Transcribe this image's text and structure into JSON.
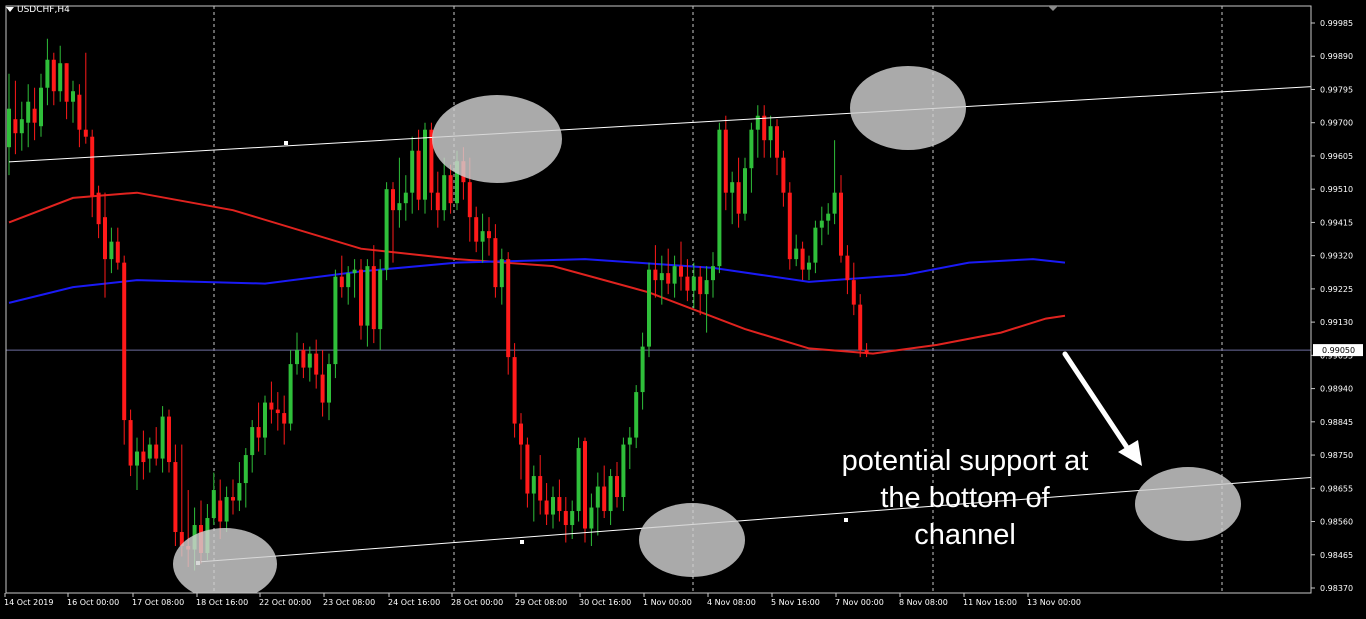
{
  "window": {
    "symbol": "USDCHF,H4"
  },
  "chart_data": {
    "type": "candlestick",
    "symbol": "USDCHF",
    "timeframe": "H4",
    "y_range": [
      0.9837,
      0.99985
    ],
    "y_ticks": [
      "0.99985",
      "0.99890",
      "0.99795",
      "0.99700",
      "0.99605",
      "0.99510",
      "0.99415",
      "0.99320",
      "0.99225",
      "0.99130",
      "0.99035",
      "0.98940",
      "0.98845",
      "0.98750",
      "0.98655",
      "0.98560",
      "0.98465",
      "0.98370"
    ],
    "x_ticks": [
      "14 Oct 2019",
      "16 Oct 00:00",
      "17 Oct 08:00",
      "18 Oct 16:00",
      "22 Oct 00:00",
      "23 Oct 08:00",
      "24 Oct 16:00",
      "28 Oct 00:00",
      "29 Oct 08:00",
      "30 Oct 16:00",
      "1 Nov 00:00",
      "4 Nov 08:00",
      "5 Nov 16:00",
      "7 Nov 00:00",
      "8 Nov 08:00",
      "11 Nov 16:00",
      "13 Nov 00:00"
    ],
    "current_price": "0.99050",
    "bull_color": "#2fbf3a",
    "bear_color": "#ff1a1a",
    "candles": [
      {
        "o": 0.9963,
        "h": 0.9984,
        "l": 0.9955,
        "c": 0.9974
      },
      {
        "o": 0.9971,
        "h": 0.9982,
        "l": 0.9961,
        "c": 0.9967
      },
      {
        "o": 0.9967,
        "h": 0.9976,
        "l": 0.9962,
        "c": 0.9971
      },
      {
        "o": 0.997,
        "h": 0.9981,
        "l": 0.9963,
        "c": 0.9976
      },
      {
        "o": 0.9974,
        "h": 0.998,
        "l": 0.9965,
        "c": 0.997
      },
      {
        "o": 0.9969,
        "h": 0.9984,
        "l": 0.9966,
        "c": 0.998
      },
      {
        "o": 0.998,
        "h": 0.9994,
        "l": 0.9975,
        "c": 0.9988
      },
      {
        "o": 0.9988,
        "h": 0.999,
        "l": 0.9975,
        "c": 0.9979
      },
      {
        "o": 0.9979,
        "h": 0.9992,
        "l": 0.9976,
        "c": 0.9987
      },
      {
        "o": 0.9987,
        "h": 0.9987,
        "l": 0.9971,
        "c": 0.9976
      },
      {
        "o": 0.9976,
        "h": 0.9982,
        "l": 0.997,
        "c": 0.9979
      },
      {
        "o": 0.9978,
        "h": 0.9981,
        "l": 0.9963,
        "c": 0.9968
      },
      {
        "o": 0.9968,
        "h": 0.999,
        "l": 0.9964,
        "c": 0.9966
      },
      {
        "o": 0.9966,
        "h": 0.9968,
        "l": 0.9943,
        "c": 0.9949
      },
      {
        "o": 0.995,
        "h": 0.9952,
        "l": 0.9937,
        "c": 0.9941
      },
      {
        "o": 0.9943,
        "h": 0.995,
        "l": 0.992,
        "c": 0.9931
      },
      {
        "o": 0.9931,
        "h": 0.994,
        "l": 0.9927,
        "c": 0.9936
      },
      {
        "o": 0.9936,
        "h": 0.994,
        "l": 0.9928,
        "c": 0.993
      },
      {
        "o": 0.993,
        "h": 0.9932,
        "l": 0.9878,
        "c": 0.9885
      },
      {
        "o": 0.9885,
        "h": 0.9888,
        "l": 0.9869,
        "c": 0.9872
      },
      {
        "o": 0.9872,
        "h": 0.988,
        "l": 0.9865,
        "c": 0.9876
      },
      {
        "o": 0.9876,
        "h": 0.9882,
        "l": 0.9868,
        "c": 0.9873
      },
      {
        "o": 0.9874,
        "h": 0.988,
        "l": 0.987,
        "c": 0.9878
      },
      {
        "o": 0.9878,
        "h": 0.9883,
        "l": 0.9872,
        "c": 0.9874
      },
      {
        "o": 0.9874,
        "h": 0.9889,
        "l": 0.987,
        "c": 0.9886
      },
      {
        "o": 0.9886,
        "h": 0.9888,
        "l": 0.987,
        "c": 0.9873
      },
      {
        "o": 0.9873,
        "h": 0.9878,
        "l": 0.9849,
        "c": 0.9853
      },
      {
        "o": 0.9853,
        "h": 0.9878,
        "l": 0.9846,
        "c": 0.9849
      },
      {
        "o": 0.9849,
        "h": 0.9865,
        "l": 0.9843,
        "c": 0.9848
      },
      {
        "o": 0.9848,
        "h": 0.986,
        "l": 0.9842,
        "c": 0.9855
      },
      {
        "o": 0.9855,
        "h": 0.9862,
        "l": 0.9844,
        "c": 0.9847
      },
      {
        "o": 0.9847,
        "h": 0.9861,
        "l": 0.9845,
        "c": 0.9857
      },
      {
        "o": 0.9857,
        "h": 0.987,
        "l": 0.9855,
        "c": 0.9865
      },
      {
        "o": 0.9862,
        "h": 0.9868,
        "l": 0.9851,
        "c": 0.9856
      },
      {
        "o": 0.9856,
        "h": 0.9866,
        "l": 0.9853,
        "c": 0.9863
      },
      {
        "o": 0.9863,
        "h": 0.9868,
        "l": 0.9858,
        "c": 0.9862
      },
      {
        "o": 0.9862,
        "h": 0.9873,
        "l": 0.9859,
        "c": 0.9867
      },
      {
        "o": 0.9867,
        "h": 0.9877,
        "l": 0.986,
        "c": 0.9875
      },
      {
        "o": 0.9875,
        "h": 0.9885,
        "l": 0.987,
        "c": 0.9883
      },
      {
        "o": 0.9883,
        "h": 0.989,
        "l": 0.9876,
        "c": 0.988
      },
      {
        "o": 0.988,
        "h": 0.9892,
        "l": 0.9875,
        "c": 0.989
      },
      {
        "o": 0.989,
        "h": 0.9896,
        "l": 0.9884,
        "c": 0.9888
      },
      {
        "o": 0.9888,
        "h": 0.9893,
        "l": 0.9882,
        "c": 0.9887
      },
      {
        "o": 0.9887,
        "h": 0.9892,
        "l": 0.9878,
        "c": 0.9884
      },
      {
        "o": 0.9884,
        "h": 0.9905,
        "l": 0.9882,
        "c": 0.9901
      },
      {
        "o": 0.9901,
        "h": 0.991,
        "l": 0.9898,
        "c": 0.9905
      },
      {
        "o": 0.9905,
        "h": 0.9907,
        "l": 0.9897,
        "c": 0.99
      },
      {
        "o": 0.99,
        "h": 0.9906,
        "l": 0.9896,
        "c": 0.9904
      },
      {
        "o": 0.9904,
        "h": 0.9908,
        "l": 0.9894,
        "c": 0.9898
      },
      {
        "o": 0.9898,
        "h": 0.9905,
        "l": 0.9886,
        "c": 0.989
      },
      {
        "o": 0.989,
        "h": 0.9904,
        "l": 0.9885,
        "c": 0.9901
      },
      {
        "o": 0.9901,
        "h": 0.9928,
        "l": 0.9897,
        "c": 0.9926
      },
      {
        "o": 0.9926,
        "h": 0.9932,
        "l": 0.992,
        "c": 0.9923
      },
      {
        "o": 0.9923,
        "h": 0.9929,
        "l": 0.9918,
        "c": 0.9927
      },
      {
        "o": 0.9927,
        "h": 0.9931,
        "l": 0.992,
        "c": 0.9928
      },
      {
        "o": 0.9928,
        "h": 0.9931,
        "l": 0.9908,
        "c": 0.9912
      },
      {
        "o": 0.9912,
        "h": 0.9931,
        "l": 0.9906,
        "c": 0.9929
      },
      {
        "o": 0.9929,
        "h": 0.9935,
        "l": 0.9907,
        "c": 0.9911
      },
      {
        "o": 0.9911,
        "h": 0.9931,
        "l": 0.9905,
        "c": 0.9928
      },
      {
        "o": 0.9928,
        "h": 0.9953,
        "l": 0.9925,
        "c": 0.9951
      },
      {
        "o": 0.9951,
        "h": 0.9953,
        "l": 0.993,
        "c": 0.9945
      },
      {
        "o": 0.9945,
        "h": 0.996,
        "l": 0.994,
        "c": 0.9947
      },
      {
        "o": 0.9947,
        "h": 0.9955,
        "l": 0.9942,
        "c": 0.995
      },
      {
        "o": 0.995,
        "h": 0.9966,
        "l": 0.9944,
        "c": 0.9962
      },
      {
        "o": 0.9962,
        "h": 0.9968,
        "l": 0.9945,
        "c": 0.9948
      },
      {
        "o": 0.9948,
        "h": 0.997,
        "l": 0.9944,
        "c": 0.9968
      },
      {
        "o": 0.9968,
        "h": 0.997,
        "l": 0.9945,
        "c": 0.995
      },
      {
        "o": 0.995,
        "h": 0.9956,
        "l": 0.994,
        "c": 0.9945
      },
      {
        "o": 0.9945,
        "h": 0.996,
        "l": 0.9942,
        "c": 0.9955
      },
      {
        "o": 0.9955,
        "h": 0.9958,
        "l": 0.9944,
        "c": 0.9947
      },
      {
        "o": 0.9947,
        "h": 0.9962,
        "l": 0.9945,
        "c": 0.9959
      },
      {
        "o": 0.9959,
        "h": 0.9963,
        "l": 0.9948,
        "c": 0.9953
      },
      {
        "o": 0.9953,
        "h": 0.996,
        "l": 0.9936,
        "c": 0.9943
      },
      {
        "o": 0.9943,
        "h": 0.9946,
        "l": 0.9933,
        "c": 0.9936
      },
      {
        "o": 0.9936,
        "h": 0.9944,
        "l": 0.993,
        "c": 0.9939
      },
      {
        "o": 0.9939,
        "h": 0.9943,
        "l": 0.9932,
        "c": 0.9937
      },
      {
        "o": 0.9937,
        "h": 0.9941,
        "l": 0.992,
        "c": 0.9923
      },
      {
        "o": 0.9923,
        "h": 0.9934,
        "l": 0.9918,
        "c": 0.9931
      },
      {
        "o": 0.9931,
        "h": 0.9933,
        "l": 0.9898,
        "c": 0.9903
      },
      {
        "o": 0.9903,
        "h": 0.9907,
        "l": 0.988,
        "c": 0.9884
      },
      {
        "o": 0.9884,
        "h": 0.9887,
        "l": 0.9868,
        "c": 0.9878
      },
      {
        "o": 0.9878,
        "h": 0.988,
        "l": 0.986,
        "c": 0.9864
      },
      {
        "o": 0.9864,
        "h": 0.9872,
        "l": 0.9856,
        "c": 0.9869
      },
      {
        "o": 0.9869,
        "h": 0.9875,
        "l": 0.9858,
        "c": 0.9862
      },
      {
        "o": 0.9862,
        "h": 0.9867,
        "l": 0.9855,
        "c": 0.9858
      },
      {
        "o": 0.9858,
        "h": 0.9866,
        "l": 0.9854,
        "c": 0.9863
      },
      {
        "o": 0.9863,
        "h": 0.9868,
        "l": 0.9856,
        "c": 0.9859
      },
      {
        "o": 0.9859,
        "h": 0.9863,
        "l": 0.985,
        "c": 0.9855
      },
      {
        "o": 0.9855,
        "h": 0.9862,
        "l": 0.9851,
        "c": 0.9859
      },
      {
        "o": 0.9859,
        "h": 0.988,
        "l": 0.9856,
        "c": 0.9877
      },
      {
        "o": 0.9879,
        "h": 0.988,
        "l": 0.985,
        "c": 0.9854
      },
      {
        "o": 0.9854,
        "h": 0.9864,
        "l": 0.9849,
        "c": 0.986
      },
      {
        "o": 0.986,
        "h": 0.987,
        "l": 0.9852,
        "c": 0.9866
      },
      {
        "o": 0.9866,
        "h": 0.9872,
        "l": 0.9857,
        "c": 0.9859
      },
      {
        "o": 0.9859,
        "h": 0.9871,
        "l": 0.9855,
        "c": 0.9869
      },
      {
        "o": 0.9869,
        "h": 0.9873,
        "l": 0.986,
        "c": 0.9863
      },
      {
        "o": 0.9863,
        "h": 0.988,
        "l": 0.9859,
        "c": 0.9878
      },
      {
        "o": 0.9878,
        "h": 0.9883,
        "l": 0.9871,
        "c": 0.988
      },
      {
        "o": 0.988,
        "h": 0.9895,
        "l": 0.9877,
        "c": 0.9893
      },
      {
        "o": 0.9893,
        "h": 0.991,
        "l": 0.9888,
        "c": 0.9906
      },
      {
        "o": 0.9906,
        "h": 0.993,
        "l": 0.9903,
        "c": 0.9928
      },
      {
        "o": 0.9928,
        "h": 0.9935,
        "l": 0.992,
        "c": 0.9925
      },
      {
        "o": 0.9925,
        "h": 0.9932,
        "l": 0.9918,
        "c": 0.9927
      },
      {
        "o": 0.9927,
        "h": 0.9934,
        "l": 0.9921,
        "c": 0.9924
      },
      {
        "o": 0.9924,
        "h": 0.9932,
        "l": 0.992,
        "c": 0.9929
      },
      {
        "o": 0.9929,
        "h": 0.9936,
        "l": 0.9922,
        "c": 0.9926
      },
      {
        "o": 0.9926,
        "h": 0.9931,
        "l": 0.9919,
        "c": 0.9922
      },
      {
        "o": 0.9922,
        "h": 0.993,
        "l": 0.9917,
        "c": 0.9926
      },
      {
        "o": 0.9926,
        "h": 0.9929,
        "l": 0.9915,
        "c": 0.9921
      },
      {
        "o": 0.9921,
        "h": 0.9929,
        "l": 0.991,
        "c": 0.9925
      },
      {
        "o": 0.9925,
        "h": 0.9933,
        "l": 0.992,
        "c": 0.9929
      },
      {
        "o": 0.9929,
        "h": 0.997,
        "l": 0.9927,
        "c": 0.9968
      },
      {
        "o": 0.9968,
        "h": 0.9972,
        "l": 0.9945,
        "c": 0.995
      },
      {
        "o": 0.995,
        "h": 0.9956,
        "l": 0.9941,
        "c": 0.9953
      },
      {
        "o": 0.9953,
        "h": 0.996,
        "l": 0.994,
        "c": 0.9944
      },
      {
        "o": 0.9944,
        "h": 0.996,
        "l": 0.9942,
        "c": 0.9957
      },
      {
        "o": 0.9957,
        "h": 0.997,
        "l": 0.995,
        "c": 0.9968
      },
      {
        "o": 0.9968,
        "h": 0.9975,
        "l": 0.996,
        "c": 0.9972
      },
      {
        "o": 0.9972,
        "h": 0.9975,
        "l": 0.996,
        "c": 0.9965
      },
      {
        "o": 0.9965,
        "h": 0.9972,
        "l": 0.996,
        "c": 0.9969
      },
      {
        "o": 0.9969,
        "h": 0.9971,
        "l": 0.9955,
        "c": 0.996
      },
      {
        "o": 0.996,
        "h": 0.9962,
        "l": 0.9946,
        "c": 0.995
      },
      {
        "o": 0.995,
        "h": 0.9953,
        "l": 0.9928,
        "c": 0.9931
      },
      {
        "o": 0.9931,
        "h": 0.9938,
        "l": 0.9929,
        "c": 0.9934
      },
      {
        "o": 0.9934,
        "h": 0.9936,
        "l": 0.9925,
        "c": 0.9928
      },
      {
        "o": 0.9928,
        "h": 0.9932,
        "l": 0.9925,
        "c": 0.993
      },
      {
        "o": 0.993,
        "h": 0.9942,
        "l": 0.9927,
        "c": 0.994
      },
      {
        "o": 0.994,
        "h": 0.9946,
        "l": 0.9935,
        "c": 0.9942
      },
      {
        "o": 0.9942,
        "h": 0.9947,
        "l": 0.9938,
        "c": 0.9944
      },
      {
        "o": 0.9944,
        "h": 0.9965,
        "l": 0.9941,
        "c": 0.995
      },
      {
        "o": 0.995,
        "h": 0.9955,
        "l": 0.993,
        "c": 0.9932
      },
      {
        "o": 0.9932,
        "h": 0.9935,
        "l": 0.9921,
        "c": 0.9925
      },
      {
        "o": 0.9925,
        "h": 0.993,
        "l": 0.9915,
        "c": 0.9918
      },
      {
        "o": 0.9918,
        "h": 0.9921,
        "l": 0.9903,
        "c": 0.9905
      },
      {
        "o": 0.9905,
        "h": 0.9907,
        "l": 0.9903,
        "c": 0.9904
      }
    ],
    "moving_averages": [
      {
        "color": "#e0231f",
        "points": [
          [
            0,
            0.99415
          ],
          [
            10,
            0.99485
          ],
          [
            20,
            0.995
          ],
          [
            35,
            0.9945
          ],
          [
            55,
            0.9934
          ],
          [
            70,
            0.9931
          ],
          [
            85,
            0.9929
          ],
          [
            100,
            0.99215
          ],
          [
            115,
            0.9911
          ],
          [
            125,
            0.99055
          ],
          [
            135,
            0.9904
          ],
          [
            145,
            0.99065
          ],
          [
            155,
            0.991
          ],
          [
            162,
            0.9914
          ],
          [
            165,
            0.99148
          ]
        ]
      },
      {
        "color": "#1a1af5",
        "points": [
          [
            0,
            0.99185
          ],
          [
            10,
            0.9923
          ],
          [
            20,
            0.9925
          ],
          [
            40,
            0.9924
          ],
          [
            55,
            0.99275
          ],
          [
            70,
            0.993
          ],
          [
            90,
            0.9931
          ],
          [
            110,
            0.99285
          ],
          [
            125,
            0.99245
          ],
          [
            140,
            0.99265
          ],
          [
            150,
            0.993
          ],
          [
            160,
            0.9931
          ],
          [
            165,
            0.993
          ]
        ]
      }
    ],
    "channel_upper": [
      [
        0,
        0.99588
      ],
      [
        210,
        0.9981
      ]
    ],
    "channel_lower": [
      [
        30,
        0.98445
      ],
      [
        210,
        0.98695
      ]
    ]
  },
  "annotation": {
    "text": "potential support at\nthe bottom of\nchannel"
  }
}
